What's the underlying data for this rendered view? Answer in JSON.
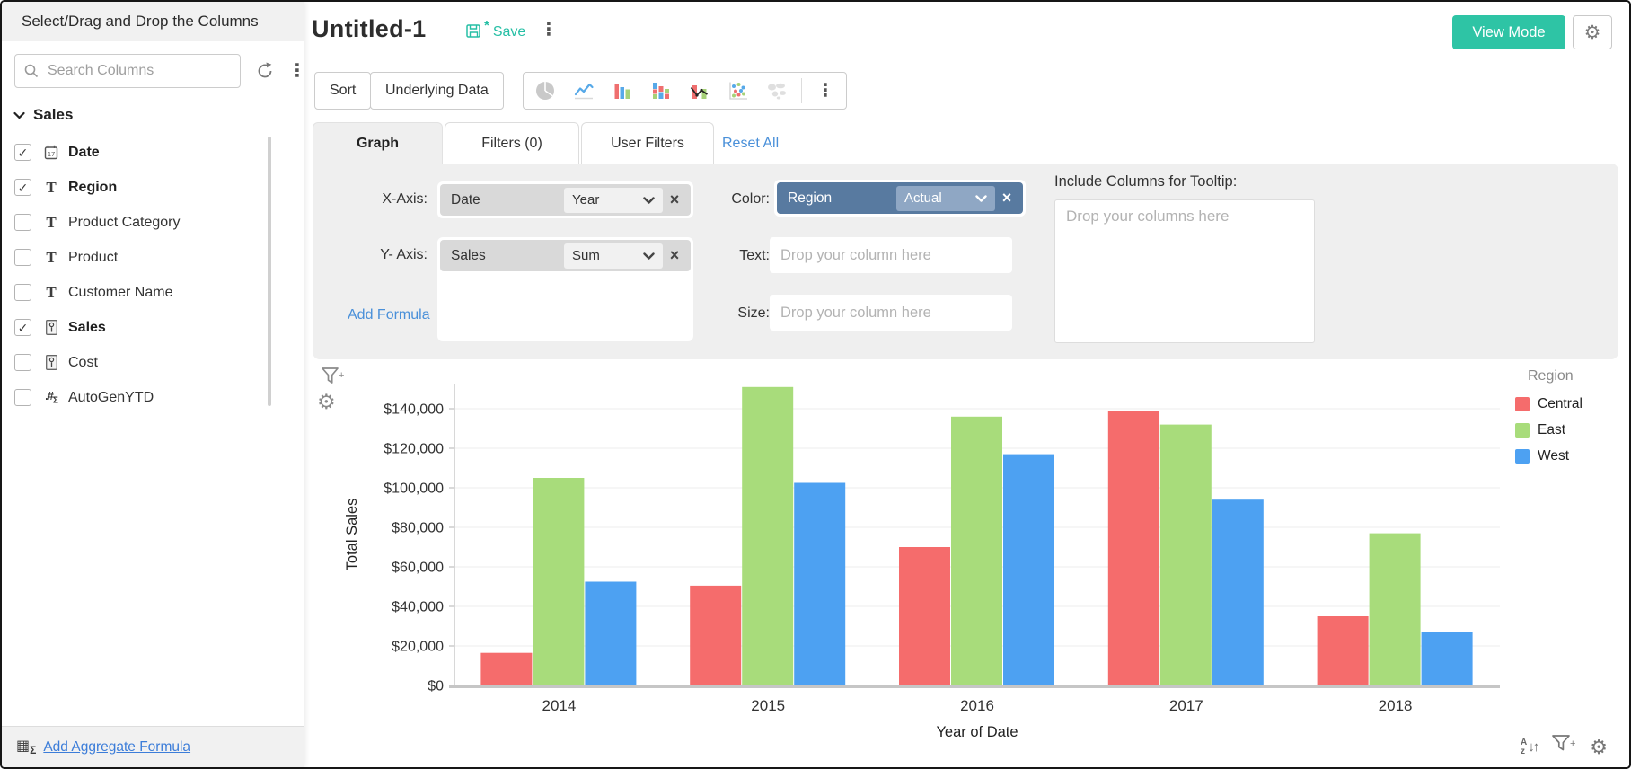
{
  "sidebar": {
    "title": "Select/Drag and Drop the Columns",
    "search_placeholder": "Search Columns",
    "group_name": "Sales",
    "columns": [
      {
        "label": "Date",
        "type": "date",
        "checked": true
      },
      {
        "label": "Region",
        "type": "text",
        "checked": true
      },
      {
        "label": "Product Category",
        "type": "text",
        "checked": false
      },
      {
        "label": "Product",
        "type": "text",
        "checked": false
      },
      {
        "label": "Customer Name",
        "type": "text",
        "checked": false
      },
      {
        "label": "Sales",
        "type": "number",
        "checked": true
      },
      {
        "label": "Cost",
        "type": "number",
        "checked": false
      },
      {
        "label": "AutoGenYTD",
        "type": "formula",
        "checked": false
      }
    ],
    "add_aggregate_formula": "Add Aggregate Formula"
  },
  "header": {
    "title": "Untitled-1",
    "save_label": "Save",
    "view_mode_label": "View Mode"
  },
  "toolbar": {
    "sort_label": "Sort",
    "underlying_data_label": "Underlying Data",
    "chart_types": [
      "pie",
      "line",
      "bar",
      "stacked-bar",
      "combo",
      "scatter",
      "map"
    ]
  },
  "tabs": {
    "graph": "Graph",
    "filters": "Filters (0)",
    "user_filters": "User Filters",
    "reset_all": "Reset All"
  },
  "config": {
    "x_axis": {
      "label": "X-Axis:",
      "column": "Date",
      "aggregate": "Year"
    },
    "y_axis": {
      "label": "Y- Axis:",
      "column": "Sales",
      "aggregate": "Sum"
    },
    "add_formula": "Add Formula",
    "color": {
      "label": "Color:",
      "column": "Region",
      "mode": "Actual"
    },
    "text": {
      "label": "Text:",
      "placeholder": "Drop your column here"
    },
    "size": {
      "label": "Size:",
      "placeholder": "Drop your column here"
    },
    "tooltip": {
      "label": "Include Columns for Tooltip:",
      "placeholder": "Drop your columns here"
    }
  },
  "chart_data": {
    "type": "bar",
    "title": "",
    "xlabel": "Year of Date",
    "ylabel": "Total Sales",
    "categories": [
      "2014",
      "2015",
      "2016",
      "2017",
      "2018"
    ],
    "series": [
      {
        "name": "Central",
        "color": "#F56C6C",
        "values": [
          16500,
          50500,
          70000,
          139000,
          35000
        ]
      },
      {
        "name": "East",
        "color": "#A8DC7B",
        "values": [
          105000,
          151000,
          136000,
          132000,
          77000
        ]
      },
      {
        "name": "West",
        "color": "#4DA1F2",
        "values": [
          52500,
          102500,
          117000,
          94000,
          27000
        ]
      }
    ],
    "ylim": [
      0,
      155000
    ],
    "y_ticks": [
      {
        "value": 0,
        "label": "$0"
      },
      {
        "value": 20000,
        "label": "$20,000"
      },
      {
        "value": 40000,
        "label": "$40,000"
      },
      {
        "value": 60000,
        "label": "$60,000"
      },
      {
        "value": 80000,
        "label": "$80,000"
      },
      {
        "value": 100000,
        "label": "$100,000"
      },
      {
        "value": 120000,
        "label": "$120,000"
      },
      {
        "value": 140000,
        "label": "$140,000"
      }
    ],
    "grid": true,
    "legend_title": "Region",
    "legend_position": "right"
  },
  "colors": {
    "accent_teal": "#2EC4A5",
    "link_blue": "#4A90D9",
    "pill_slate": "#587AA0",
    "panel_gray": "#EFEFEF"
  },
  "icons": {
    "check": "✓",
    "kebab": "⋮",
    "gear": "⚙",
    "sigma": "Σ",
    "grid": "▦",
    "asterisk": "*",
    "close": "×",
    "sort_a": "A",
    "sort_z": "z",
    "arrow_down": "↓",
    "arrow_up": "↑"
  }
}
